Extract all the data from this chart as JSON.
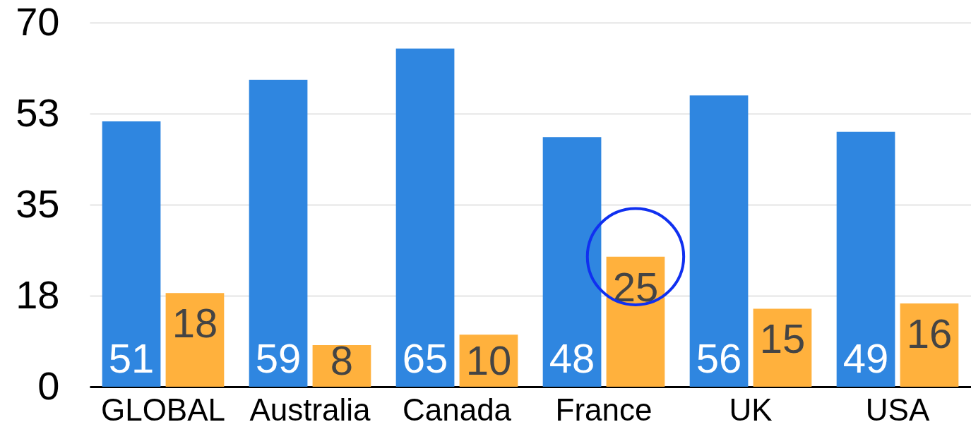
{
  "chart_data": {
    "type": "bar",
    "categories": [
      "GLOBAL",
      "Australia",
      "Canada",
      "France",
      "UK",
      "USA"
    ],
    "series": [
      {
        "color": "#2f86e0",
        "values": [
          51,
          59,
          65,
          48,
          56,
          49
        ],
        "value_labels": [
          "51",
          "59",
          "65",
          "48",
          "56",
          "49"
        ]
      },
      {
        "color": "#ffb13d",
        "values": [
          18,
          8,
          10,
          25,
          15,
          16
        ],
        "value_labels": [
          "18",
          "8",
          "10",
          "25",
          "15",
          "16"
        ]
      },
      {
        "type": "scatter",
        "color": "#1030f0",
        "marker": "circle",
        "values": [
          null,
          null,
          null,
          25,
          null,
          null
        ]
      }
    ],
    "ylim": [
      0,
      70
    ],
    "yticks": [
      0,
      {
        "value": 17.5,
        "label": "18"
      },
      35,
      {
        "value": 52.5,
        "label": "53"
      },
      70
    ],
    "grid": "y",
    "legend": false
  }
}
